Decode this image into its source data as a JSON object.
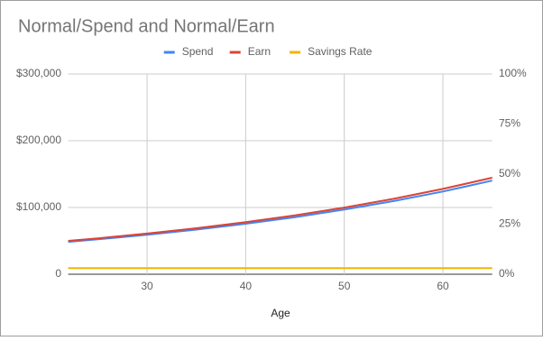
{
  "chart_data": {
    "type": "line",
    "title": "Normal/Spend and Normal/Earn",
    "x_label": "Age",
    "x": [
      22,
      25,
      30,
      35,
      40,
      45,
      50,
      55,
      60,
      65
    ],
    "series": [
      {
        "name": "Spend",
        "color": "#4285f4",
        "values": [
          48500,
          52230,
          59092,
          66856,
          75644,
          85583,
          96830,
          109557,
          123951,
          140238
        ]
      },
      {
        "name": "Earn",
        "color": "#db4437",
        "values": [
          50000,
          53845,
          60920,
          68924,
          77983,
          88230,
          99825,
          112945,
          127785,
          144575
        ]
      },
      {
        "name": "Savings Rate",
        "color": "#f4b400",
        "axis": "y2",
        "values": [
          3,
          3,
          3,
          3,
          3,
          3,
          3,
          3,
          3,
          3
        ]
      }
    ],
    "xlim": [
      22,
      65
    ],
    "xticks": [
      30,
      40,
      50,
      60
    ],
    "ylim": [
      0,
      300000
    ],
    "yticks": [
      0,
      {
        "value": 100000,
        "label": "$100,000"
      },
      {
        "value": 200000,
        "label": "$200,000"
      },
      {
        "value": 300000,
        "label": "$300,000"
      }
    ],
    "y2lim": [
      0,
      100
    ],
    "y2ticks": [
      {
        "value": 0,
        "label": "0%"
      },
      {
        "value": 25,
        "label": "25%"
      },
      {
        "value": 50,
        "label": "50%"
      },
      {
        "value": 75,
        "label": "75%"
      },
      {
        "value": 100,
        "label": "100%"
      }
    ],
    "grid": true,
    "legend": "top"
  }
}
